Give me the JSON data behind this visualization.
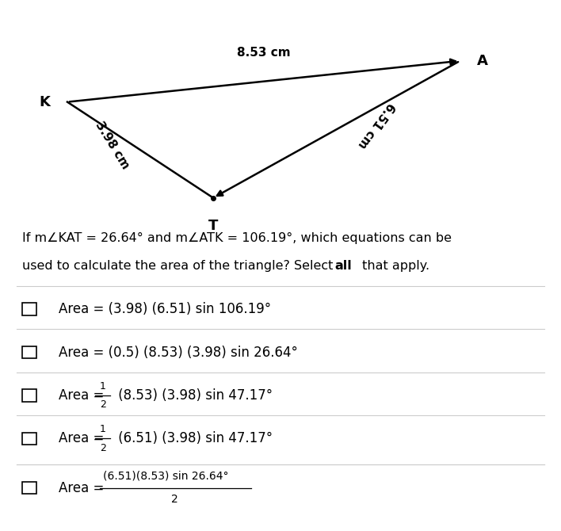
{
  "bg_color": "#ffffff",
  "triangle": {
    "K": [
      0.12,
      0.6
    ],
    "A": [
      0.82,
      0.78
    ],
    "T": [
      0.38,
      0.18
    ],
    "label_K": "K",
    "label_A": "A",
    "label_T": "T",
    "side_KA_label": "8.53 cm",
    "side_KT_label": "3.98 cm",
    "side_AT_label": "6.51 cm"
  },
  "question_text_line1": "If m∠KAT = 26.64° and m∠ATK = 106.19°, which equations can be",
  "question_text_line2": "used to calculate the area of the triangle? Select ",
  "question_bold": "all",
  "question_text_line2_end": " that apply.",
  "options": [
    {
      "prefix": "Area = ",
      "main": "(3.98) (6.51) sin 106.19°",
      "is_fraction": false,
      "is_big_fraction": false
    },
    {
      "prefix": "Area = ",
      "main": "(0.5) (8.53) (3.98) sin 26.64°",
      "is_fraction": false,
      "is_big_fraction": false
    },
    {
      "prefix": "Area = ",
      "fraction_num": "1",
      "fraction_den": "2",
      "main": " (8.53) (3.98) sin 47.17°",
      "is_fraction": true,
      "is_big_fraction": false
    },
    {
      "prefix": "Area = ",
      "fraction_num": "1",
      "fraction_den": "2",
      "main": " (6.51) (3.98) sin 47.17°",
      "is_fraction": true,
      "is_big_fraction": false
    },
    {
      "prefix": "Area = ",
      "numerator": "(6.51)(8.53) sin 26.64°",
      "denominator": "2",
      "is_fraction": false,
      "is_big_fraction": true
    }
  ]
}
